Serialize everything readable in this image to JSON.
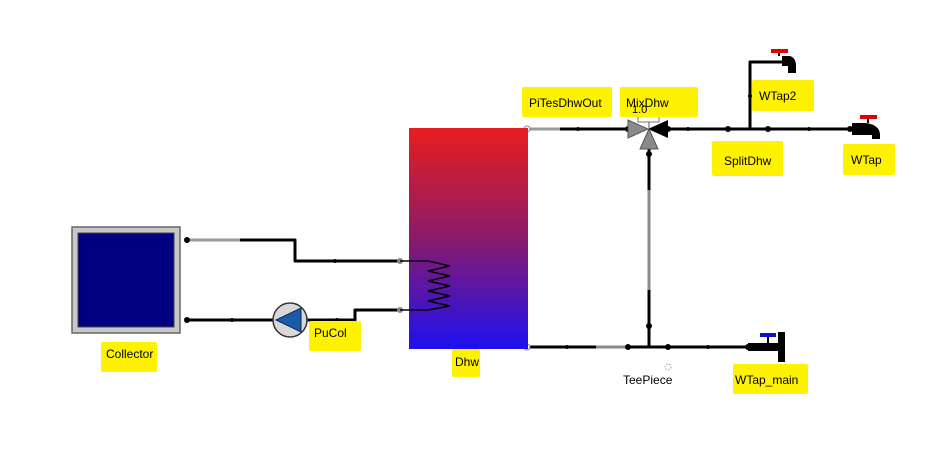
{
  "labels": {
    "collector": "Collector",
    "pucol": "PuCol",
    "dhw": "Dhw",
    "pitesdhwout": "PiTesDhwOut",
    "mixdhw": "MixDhw",
    "mix_value": "1.0",
    "splitdhw": "SplitDhw",
    "wtap2": "WTap2",
    "wtap": "WTap",
    "teepiece": "TeePiece",
    "wtap_main": "WTap_main"
  },
  "colors": {
    "highlight": "#fff200",
    "collector_fill": "#000080",
    "tank_top": "#e81e1e",
    "tank_bottom": "#1e10f0",
    "pump_fill": "#1a5aa8",
    "hot_valve": "#e00000",
    "cold_valve": "#1010d0"
  }
}
